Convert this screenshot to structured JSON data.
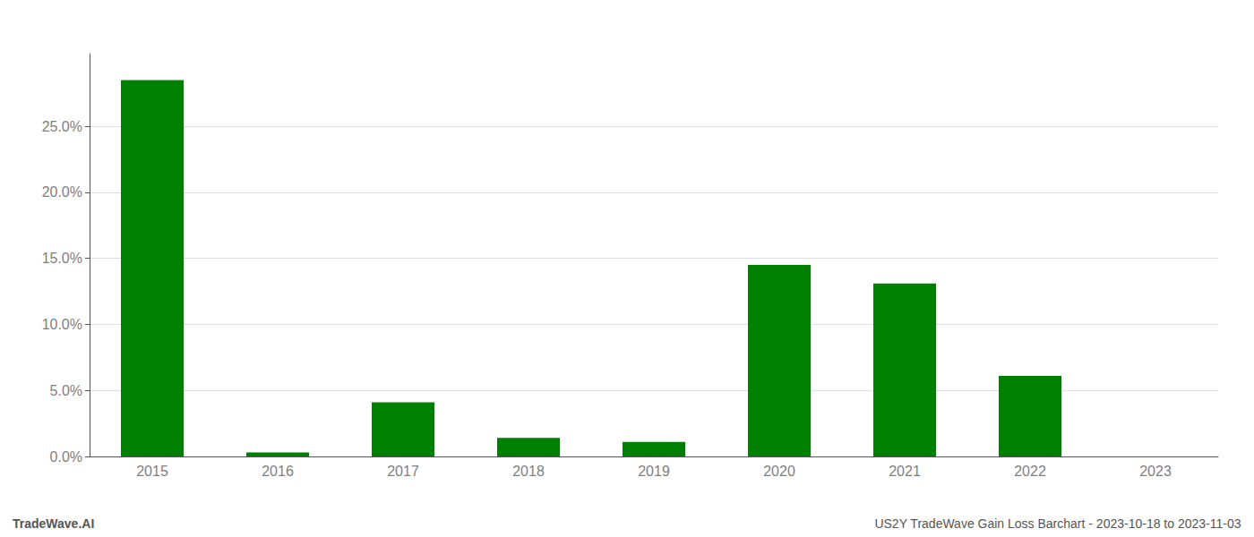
{
  "chart_data": {
    "type": "bar",
    "categories": [
      "2015",
      "2016",
      "2017",
      "2018",
      "2019",
      "2020",
      "2021",
      "2022",
      "2023"
    ],
    "values": [
      0.285,
      0.003,
      0.041,
      0.014,
      0.011,
      0.145,
      0.131,
      0.061,
      0.0
    ],
    "color": "#008000",
    "ylim": [
      0,
      0.305
    ],
    "yticks": [
      {
        "value": 0.0,
        "label": "0.0%"
      },
      {
        "value": 0.05,
        "label": "5.0%"
      },
      {
        "value": 0.1,
        "label": "10.0%"
      },
      {
        "value": 0.15,
        "label": "15.0%"
      },
      {
        "value": 0.2,
        "label": "20.0%"
      },
      {
        "value": 0.25,
        "label": "25.0%"
      }
    ],
    "grid": true,
    "annotations": [
      "TradeWave.AI",
      "US2Y TradeWave Gain Loss Barchart - 2023-10-18 to 2023-11-03"
    ]
  }
}
